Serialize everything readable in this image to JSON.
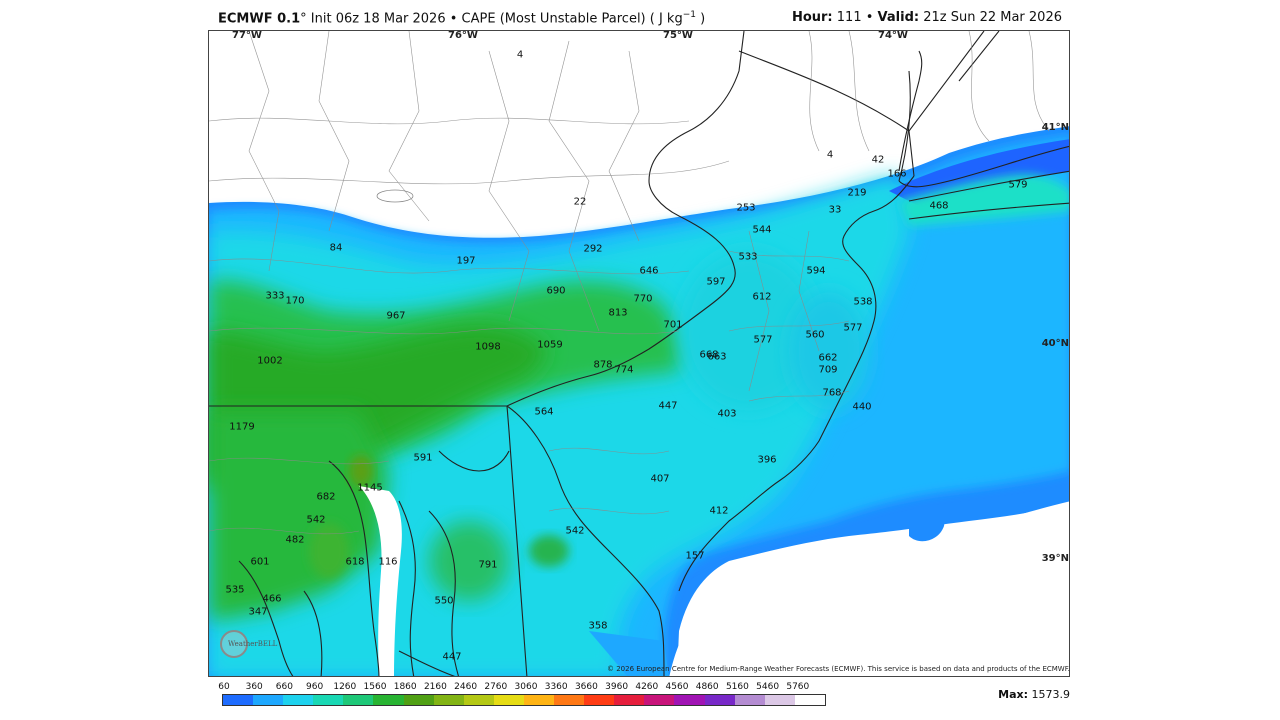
{
  "header": {
    "model": "ECMWF 0.1",
    "degree_suffix": "°",
    "title_rest": " Init 06z 18 Mar 2026 • CAPE (Most Unstable Parcel) ( J kg",
    "units_exp": "−1",
    "title_end": " )",
    "hour_label": "Hour:",
    "hour_value": " 111 • ",
    "valid_label": "Valid:",
    "valid_value": " 21z Sun 22 Mar 2026"
  },
  "axes": {
    "longitudes": [
      "77°W",
      "76°W",
      "75°W",
      "74°W"
    ],
    "latitudes": [
      "41°N",
      "40°N",
      "39°N"
    ]
  },
  "map_values": [
    "4",
    "4",
    "42",
    "166",
    "219",
    "33",
    "253",
    "544",
    "533",
    "594",
    "538",
    "577",
    "560",
    "662",
    "709",
    "768",
    "440",
    "579",
    "468",
    "22",
    "292",
    "197",
    "84",
    "646",
    "597",
    "612",
    "690",
    "770",
    "813",
    "701",
    "577",
    "333",
    "170",
    "967",
    "1098",
    "1059",
    "878",
    "774",
    "668",
    "663",
    "1002",
    "1179",
    "564",
    "447",
    "403",
    "396",
    "591",
    "1145",
    "682",
    "542",
    "482",
    "601",
    "618",
    "116",
    "535",
    "466",
    "347",
    "407",
    "412",
    "542",
    "791",
    "157",
    "550",
    "358",
    "447"
  ],
  "copyright": "© 2026 European Centre for Medium-Range Weather Forecasts (ECMWF). This service is based on data and products of the ECMWF.",
  "scale": {
    "ticks": [
      "60",
      "360",
      "660",
      "960",
      "1260",
      "1560",
      "1860",
      "2160",
      "2460",
      "2760",
      "3060",
      "3360",
      "3660",
      "3960",
      "4260",
      "4560",
      "4860",
      "5160",
      "5460",
      "5760"
    ],
    "colors": [
      "#1e6cff",
      "#1ea8ff",
      "#1ed2ee",
      "#19d8b4",
      "#1ec878",
      "#28b432",
      "#50a014",
      "#82b414",
      "#b4c814",
      "#e6dc14",
      "#ffb414",
      "#ff7814",
      "#ff3c14",
      "#e61e3c",
      "#c8147a",
      "#a014b4",
      "#7828c8",
      "#b48cd2",
      "#dcc8e6",
      "#ffffff"
    ]
  },
  "max": {
    "label": "Max:",
    "value": " 1573.9"
  },
  "logo_text": "WeatherBELL"
}
